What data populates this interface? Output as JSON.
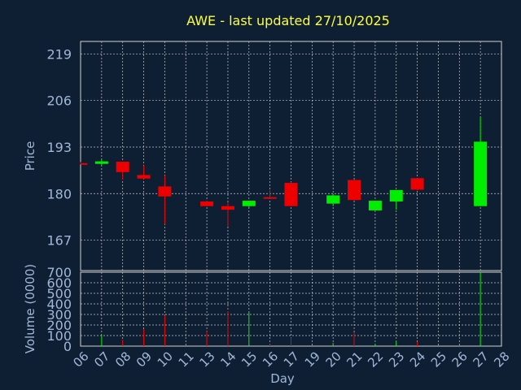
{
  "chart_data": {
    "type": "candlestick",
    "title": "AWE - last updated 27/10/2025",
    "xlabel": "Day",
    "price_panel": {
      "ylabel": "Price",
      "yticks": [
        167,
        180,
        193,
        206,
        219
      ],
      "ylim": [
        158.5,
        222.5
      ]
    },
    "volume_panel": {
      "ylabel": "Volume (0000)",
      "yticks": [
        0,
        100,
        200,
        300,
        400,
        500,
        600,
        700
      ],
      "ylim": [
        0,
        700
      ]
    },
    "x_tick_labels": [
      "06",
      "07",
      "08",
      "09",
      "10",
      "11",
      "13",
      "14",
      "15",
      "16",
      "17",
      "19",
      "20",
      "21",
      "22",
      "23",
      "24",
      "25",
      "26",
      "27",
      "28"
    ],
    "grid": true,
    "colors": {
      "up": "#00ee00",
      "down": "#ee0000",
      "title": "#ffff33",
      "axis_text": "#9fb8d8",
      "background": "#0f1f33"
    },
    "candles": [
      {
        "day": "06",
        "open": 188.5,
        "high": 188.8,
        "low": 188.2,
        "close": 188.2,
        "volume": 0
      },
      {
        "day": "07",
        "open": 188.3,
        "high": 189.5,
        "low": 187.9,
        "close": 189.0,
        "volume": 100
      },
      {
        "day": "08",
        "open": 188.9,
        "high": 188.9,
        "low": 183.9,
        "close": 186.0,
        "volume": 60
      },
      {
        "day": "09",
        "open": 185.2,
        "high": 187.8,
        "low": 184.0,
        "close": 184.2,
        "volume": 160
      },
      {
        "day": "10",
        "open": 182.0,
        "high": 185.0,
        "low": 171.5,
        "close": 179.2,
        "volume": 290
      },
      {
        "day": "13",
        "open": 177.8,
        "high": 178.0,
        "low": 176.5,
        "close": 176.5,
        "volume": 140
      },
      {
        "day": "14",
        "open": 176.5,
        "high": 177.5,
        "low": 170.8,
        "close": 175.5,
        "volume": 330
      },
      {
        "day": "15",
        "open": 176.5,
        "high": 178.0,
        "low": 176.0,
        "close": 178.0,
        "volume": 330
      },
      {
        "day": "16",
        "open": 179.0,
        "high": 181.0,
        "low": 178.5,
        "close": 178.8,
        "volume": 20
      },
      {
        "day": "17",
        "open": 183.0,
        "high": 183.2,
        "low": 176.5,
        "close": 176.5,
        "volume": 80
      },
      {
        "day": "20",
        "open": 177.2,
        "high": 180.0,
        "low": 176.5,
        "close": 179.5,
        "volume": 30
      },
      {
        "day": "21",
        "open": 183.8,
        "high": 183.9,
        "low": 178.0,
        "close": 178.2,
        "volume": 130
      },
      {
        "day": "22",
        "open": 175.3,
        "high": 178.0,
        "low": 175.3,
        "close": 178.0,
        "volume": 20
      },
      {
        "day": "23",
        "open": 177.8,
        "high": 181.0,
        "low": 175.5,
        "close": 181.0,
        "volume": 40
      },
      {
        "day": "24",
        "open": 184.3,
        "high": 184.3,
        "low": 180.9,
        "close": 181.1,
        "volume": 40
      },
      {
        "day": "27",
        "open": 176.5,
        "high": 201.5,
        "low": 176.5,
        "close": 194.5,
        "volume": 700
      }
    ]
  }
}
